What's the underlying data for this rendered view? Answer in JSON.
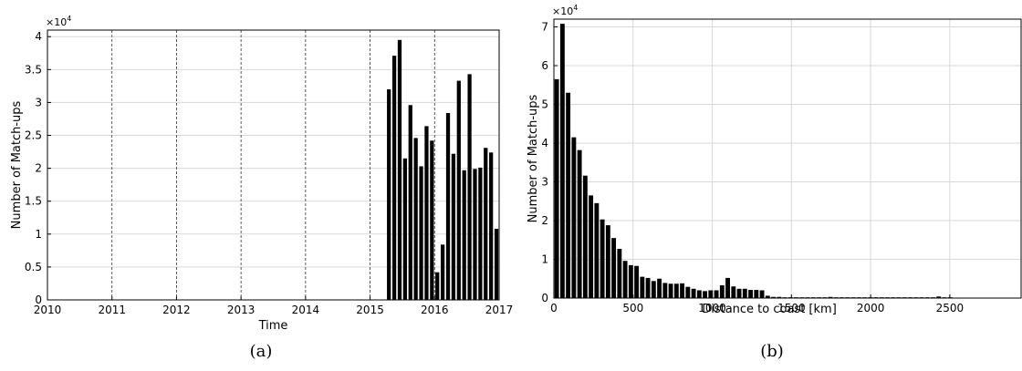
{
  "chart_data": [
    {
      "type": "bar",
      "caption": "(a)",
      "xlabel": "Time",
      "ylabel": "Number of Match-ups",
      "exponent_label": "×10",
      "exponent_power": "4",
      "xlim": [
        2010,
        2017
      ],
      "ylim": [
        0,
        4.1
      ],
      "y_scale_factor": 10000,
      "xticks": [
        "2010",
        "2011",
        "2012",
        "2013",
        "2014",
        "2015",
        "2016",
        "2017"
      ],
      "yticks": [
        "0",
        "0.5",
        "1",
        "1.5",
        "2",
        "2.5",
        "3",
        "3.5",
        "4"
      ],
      "grid": "horizontal solid, vertical dashed at years",
      "bar_color": "#000000",
      "x": [
        "2015-04",
        "2015-05",
        "2015-06",
        "2015-07",
        "2015-08",
        "2015-09",
        "2015-10",
        "2015-11",
        "2015-12",
        "2016-01",
        "2016-02",
        "2016-03",
        "2016-04",
        "2016-05",
        "2016-06",
        "2016-07",
        "2016-08",
        "2016-09",
        "2016-10",
        "2016-11",
        "2016-12"
      ],
      "values": [
        3.2,
        3.71,
        3.95,
        2.15,
        2.96,
        2.46,
        2.03,
        2.64,
        2.42,
        0.42,
        0.84,
        2.84,
        2.22,
        3.33,
        1.97,
        3.43,
        1.99,
        2.01,
        2.31,
        2.24,
        1.08
      ]
    },
    {
      "type": "bar",
      "caption": "(b)",
      "xlabel": "Distance to coast [km]",
      "ylabel": "Number of Match-ups",
      "exponent_label": "×10",
      "exponent_power": "4",
      "xlim": [
        0,
        2950
      ],
      "ylim": [
        0,
        7.2
      ],
      "y_scale_factor": 10000,
      "xticks": [
        "0",
        "500",
        "1000",
        "1500",
        "2000",
        "2500"
      ],
      "yticks": [
        "0",
        "1",
        "2",
        "3",
        "4",
        "5",
        "6",
        "7"
      ],
      "grid": "on",
      "bar_color": "#000000",
      "bin_width_km": 36,
      "x": [
        18,
        54,
        90,
        126,
        162,
        198,
        234,
        270,
        306,
        342,
        378,
        414,
        450,
        486,
        522,
        558,
        594,
        630,
        666,
        702,
        738,
        774,
        810,
        846,
        882,
        918,
        954,
        990,
        1026,
        1062,
        1098,
        1134,
        1170,
        1206,
        1242,
        1278,
        1314,
        1350,
        1386,
        1422,
        1458,
        1494,
        1530,
        1566,
        1602,
        1638,
        1674,
        1710,
        1746,
        1782,
        1818,
        1854,
        1890,
        1926,
        1962,
        1998,
        2034,
        2070,
        2106,
        2142,
        2178,
        2214,
        2250,
        2286,
        2322,
        2358,
        2394,
        2430,
        2466,
        2502
      ],
      "values": [
        5.65,
        7.08,
        5.3,
        4.15,
        3.82,
        3.16,
        2.65,
        2.45,
        2.03,
        1.88,
        1.55,
        1.27,
        0.96,
        0.85,
        0.83,
        0.55,
        0.52,
        0.44,
        0.5,
        0.39,
        0.37,
        0.37,
        0.38,
        0.29,
        0.24,
        0.2,
        0.18,
        0.2,
        0.2,
        0.33,
        0.52,
        0.3,
        0.24,
        0.24,
        0.21,
        0.21,
        0.2,
        0.06,
        0.03,
        0.03,
        0.02,
        0.02,
        0.02,
        0.02,
        0.02,
        0.02,
        0.02,
        0.02,
        0.03,
        0.02,
        0.02,
        0.02,
        0.02,
        0.02,
        0.02,
        0.02,
        0.02,
        0.02,
        0.02,
        0.02,
        0.02,
        0.02,
        0.02,
        0.02,
        0.02,
        0.02,
        0.02,
        0.04,
        0.02,
        0.02
      ]
    }
  ]
}
